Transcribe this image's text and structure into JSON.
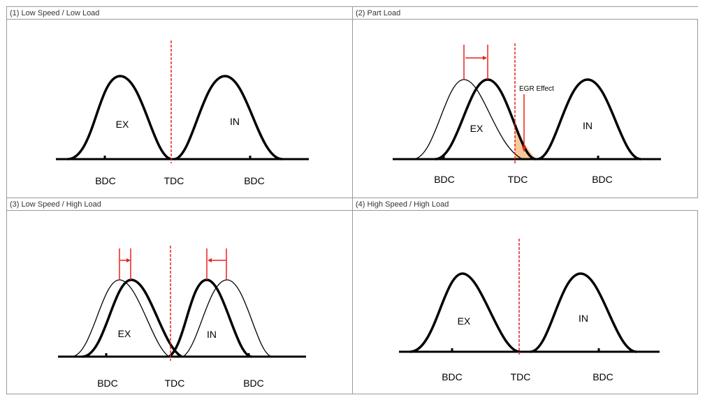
{
  "panels": [
    {
      "title": "(1) Low Speed / Low Load",
      "ex": "EX",
      "in": "IN",
      "bdc_left": "BDC",
      "tdc": "TDC",
      "bdc_right": "BDC"
    },
    {
      "title": "(2) Part Load",
      "ex": "EX",
      "in": "IN",
      "bdc_left": "BDC",
      "tdc": "TDC",
      "bdc_right": "BDC",
      "annotation": "EGR Effect"
    },
    {
      "title": "(3) Low Speed / High Load",
      "ex": "EX",
      "in": "IN",
      "bdc_left": "BDC",
      "tdc": "TDC",
      "bdc_right": "BDC"
    },
    {
      "title": "(4) High Speed / High Load",
      "ex": "EX",
      "in": "IN",
      "bdc_left": "BDC",
      "tdc": "TDC",
      "bdc_right": "BDC"
    }
  ],
  "colors": {
    "curve": "#000000",
    "tdc_line": "#e8201e",
    "shift_arrow": "#e8201e",
    "egr_fill": "#f7c99a",
    "border": "#999999"
  }
}
